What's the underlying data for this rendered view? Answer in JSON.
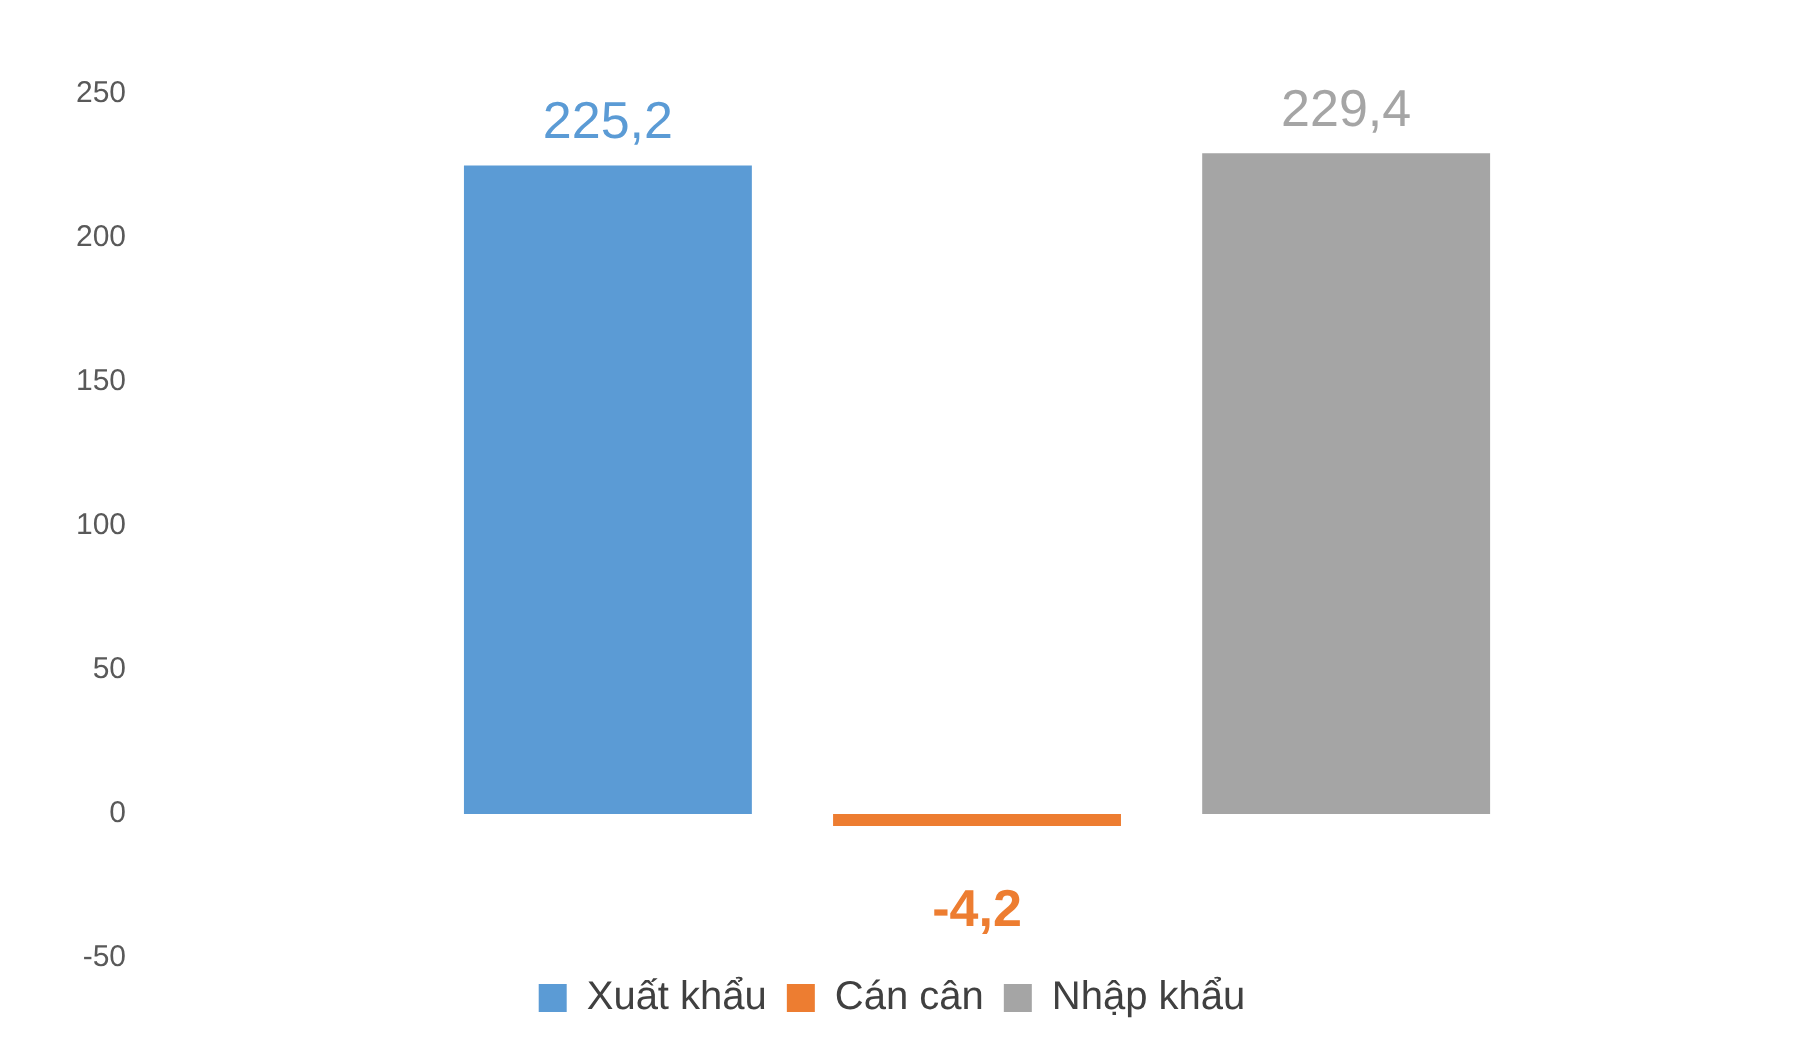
{
  "chart_data": {
    "type": "bar",
    "categories": [
      null
    ],
    "series": [
      {
        "name": "Xuất khẩu",
        "color": "#5b9bd5",
        "values": [
          225.2
        ],
        "value_labels": [
          "225,2"
        ]
      },
      {
        "name": "Cán cân",
        "color": "#ed7d31",
        "values": [
          -4.2
        ],
        "value_labels": [
          "-4,2"
        ]
      },
      {
        "name": "Nhập khẩu",
        "color": "#a5a5a5",
        "values": [
          229.4
        ],
        "value_labels": [
          "229,4"
        ]
      }
    ],
    "ylim": [
      -50,
      250
    ],
    "yticks": [
      -50,
      0,
      50,
      100,
      150,
      200,
      250
    ],
    "tick_labels": "y",
    "grid": false,
    "legend": "bottom"
  }
}
